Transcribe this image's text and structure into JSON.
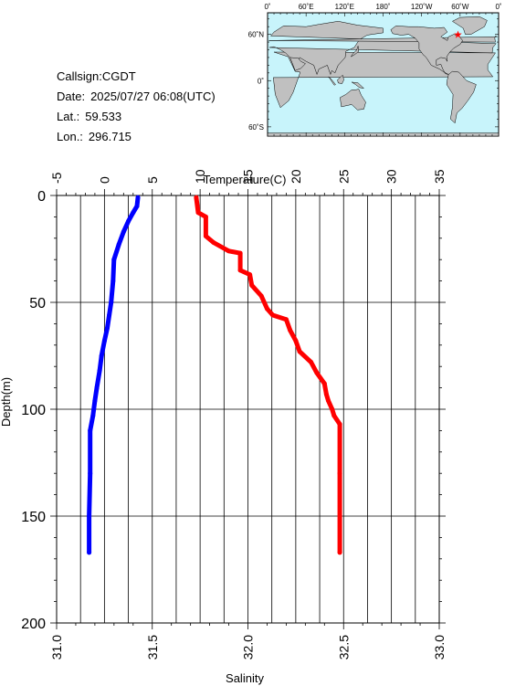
{
  "info": {
    "callsign_label": "Callsign:",
    "callsign": "CGDT",
    "date_label": "Date:",
    "date": "2025/07/27 06:08(UTC)",
    "lat_label": "Lat.:",
    "lat": "59.533",
    "lon_label": "Lon.:",
    "lon": "296.715"
  },
  "map": {
    "lon_labels": [
      "0˚",
      "60˚E",
      "120˚E",
      "180˚",
      "120˚W",
      "60˚W",
      "0˚"
    ],
    "lat_labels": [
      "60˚N",
      "0˚",
      "60˚S"
    ],
    "ocean_color": "#c8f4fb",
    "land_color": "#c0c0c0",
    "marker_color": "#ff0000",
    "station": {
      "lat": 59.533,
      "lon": 296.715
    }
  },
  "chart_data": {
    "type": "line",
    "title": "",
    "top_axis_label": "Temperature(C)",
    "bottom_axis_label": "Salinity",
    "y_axis_label": "Depth(m)",
    "temperature_range": [
      -5,
      35
    ],
    "temperature_ticks": [
      "-5",
      "0",
      "5",
      "10",
      "15",
      "20",
      "25",
      "30",
      "35"
    ],
    "salinity_range": [
      31.0,
      33.0
    ],
    "salinity_ticks": [
      "31.0",
      "31.5",
      "32.0",
      "32.5",
      "33.0"
    ],
    "depth_range": [
      0,
      200
    ],
    "depth_ticks": [
      "0",
      "50",
      "100",
      "150",
      "200"
    ],
    "grid": true,
    "series": [
      {
        "color": "#0000ff",
        "axis": "temperature",
        "points": [
          [
            3.5,
            1
          ],
          [
            3.4,
            5
          ],
          [
            3.0,
            8
          ],
          [
            2.5,
            12
          ],
          [
            2.0,
            17
          ],
          [
            1.5,
            23
          ],
          [
            1.0,
            30
          ],
          [
            0.9,
            40
          ],
          [
            0.7,
            50
          ],
          [
            0.5,
            56
          ],
          [
            0.3,
            62
          ],
          [
            0.0,
            68
          ],
          [
            -0.3,
            75
          ],
          [
            -0.5,
            82
          ],
          [
            -0.8,
            90
          ],
          [
            -1.0,
            96
          ],
          [
            -1.2,
            103
          ],
          [
            -1.5,
            110
          ],
          [
            -1.5,
            130
          ],
          [
            -1.6,
            150
          ],
          [
            -1.6,
            167
          ]
        ]
      },
      {
        "color": "#ff0000",
        "axis": "salinity",
        "points": [
          [
            31.73,
            1
          ],
          [
            31.74,
            8
          ],
          [
            31.78,
            10
          ],
          [
            31.78,
            19
          ],
          [
            31.82,
            22
          ],
          [
            31.9,
            26
          ],
          [
            31.96,
            27
          ],
          [
            31.96,
            35
          ],
          [
            32.01,
            37
          ],
          [
            32.02,
            42
          ],
          [
            32.07,
            47
          ],
          [
            32.1,
            53
          ],
          [
            32.13,
            56
          ],
          [
            32.2,
            58
          ],
          [
            32.22,
            63
          ],
          [
            32.25,
            68
          ],
          [
            32.27,
            73
          ],
          [
            32.33,
            78
          ],
          [
            32.36,
            83
          ],
          [
            32.4,
            88
          ],
          [
            32.41,
            93
          ],
          [
            32.42,
            96
          ],
          [
            32.44,
            100
          ],
          [
            32.45,
            103
          ],
          [
            32.48,
            107
          ],
          [
            32.48,
            130
          ],
          [
            32.48,
            167
          ]
        ]
      }
    ]
  }
}
